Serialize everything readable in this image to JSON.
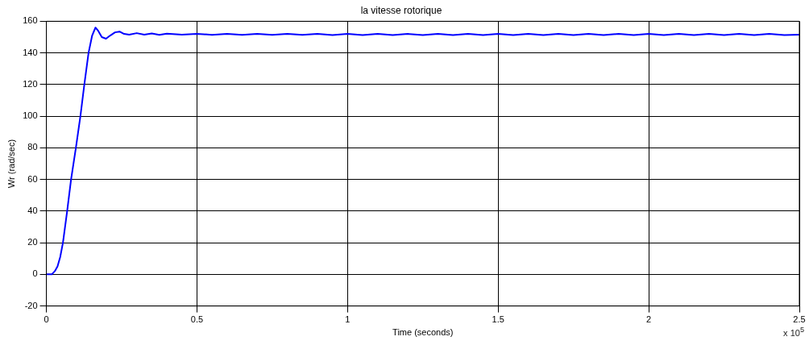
{
  "chart_data": {
    "type": "line",
    "title": "la vitesse rotorique",
    "xlabel": "Time (seconds)",
    "ylabel": "Wr (rad/sec)",
    "annotations": [
      "x 10$^{5}$"
    ],
    "series": [
      {
        "color": "#0000ff",
        "x": [
          0,
          0.018,
          0.028,
          0.037,
          0.046,
          0.055,
          0.069,
          0.082,
          0.098,
          0.113,
          0.126,
          0.14,
          0.152,
          0.163,
          0.172,
          0.184,
          0.198,
          0.212,
          0.228,
          0.243,
          0.258,
          0.275,
          0.3,
          0.325,
          0.35,
          0.375,
          0.4,
          0.45,
          0.5,
          0.55,
          0.6,
          0.65,
          0.7,
          0.75,
          0.8,
          0.85,
          0.9,
          0.95,
          1,
          1.05,
          1.1,
          1.15,
          1.2,
          1.25,
          1.3,
          1.35,
          1.4,
          1.45,
          1.5,
          1.55,
          1.6,
          1.65,
          1.7,
          1.75,
          1.8,
          1.85,
          1.9,
          1.95,
          2,
          2.05,
          2.1,
          2.15,
          2.2,
          2.25,
          2.3,
          2.35,
          2.4,
          2.45,
          2.5
        ],
        "values": [
          0,
          0,
          2,
          5,
          11,
          20,
          40,
          60,
          80,
          100,
          120,
          140,
          151,
          156,
          154,
          150,
          149,
          151,
          153,
          153.5,
          152,
          151.5,
          152.5,
          151.5,
          152.3,
          151.4,
          152.2,
          151.5,
          152.1,
          151.4,
          152.1,
          151.4,
          152.1,
          151.4,
          152,
          151.4,
          152.1,
          151.3,
          152,
          151.3,
          152.1,
          151.3,
          152,
          151.3,
          152.1,
          151.3,
          152,
          151.3,
          152,
          151.3,
          152.1,
          151.3,
          152,
          151.3,
          152,
          151.3,
          152.1,
          151.3,
          152,
          151.3,
          152.1,
          151.3,
          152,
          151.3,
          152,
          151.3,
          152.1,
          151.3,
          151.6
        ]
      }
    ],
    "xlim": [
      0,
      2.5
    ],
    "xticks": [
      0,
      0.5,
      1,
      1.5,
      2,
      2.5
    ],
    "ylim": [
      -20,
      160
    ],
    "yticks": [
      -20,
      0,
      20,
      40,
      60,
      80,
      100,
      120,
      140,
      160
    ],
    "grid": true,
    "legend": false,
    "marker": "none",
    "line_style": "solid"
  }
}
